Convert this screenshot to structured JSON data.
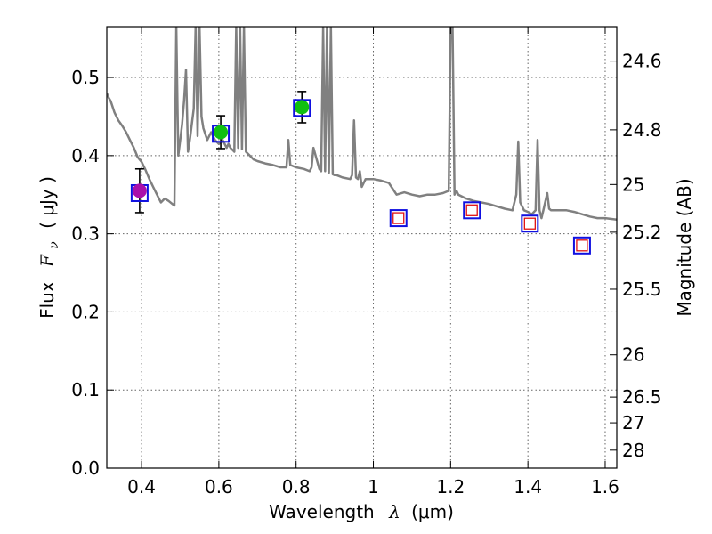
{
  "chart_data": {
    "type": "scatter",
    "xlabel": "Wavelength",
    "xlabel_symbol": "λ",
    "xlabel_unit": "(μm)",
    "ylabel": "Flux",
    "ylabel_symbol": "F",
    "ylabel_subscript": "ν",
    "ylabel_unit": "( μJy )",
    "y2label": "Magnitude (AB)",
    "xlim": [
      0.31,
      1.63
    ],
    "ylim": [
      0.0,
      0.565
    ],
    "grid": true,
    "x_ticks": [
      0.4,
      0.6,
      0.8,
      1.0,
      1.2,
      1.4,
      1.6
    ],
    "x_tick_labels": [
      "0.4",
      "0.6",
      "0.8",
      "1",
      "1.2",
      "1.4",
      "1.6"
    ],
    "y_ticks": [
      0.0,
      0.1,
      0.2,
      0.3,
      0.4,
      0.5
    ],
    "y_tick_labels": [
      "0.0",
      "0.1",
      "0.2",
      "0.3",
      "0.4",
      "0.5"
    ],
    "y2_tick_labels": [
      "24.6",
      "24.8",
      "25",
      "25.2",
      "25.5",
      "26",
      "26.5",
      "27",
      "28"
    ],
    "y2_ticks_flux": [
      0.521,
      0.433,
      0.363,
      0.302,
      0.229,
      0.145,
      0.091,
      0.058,
      0.023
    ],
    "colors": {
      "spectrum": "#808080",
      "model_box": "#1010e0",
      "limit_box": "#e01010",
      "detection_blue_band": "#aa10aa",
      "detection_red_band": "#10c010",
      "errorbar": "#000000"
    },
    "series": [
      {
        "name": "model spectrum",
        "type": "line",
        "x": [
          0.31,
          0.315,
          0.32,
          0.33,
          0.34,
          0.35,
          0.36,
          0.37,
          0.38,
          0.39,
          0.4,
          0.41,
          0.42,
          0.43,
          0.44,
          0.45,
          0.46,
          0.47,
          0.48,
          0.485,
          0.49,
          0.495,
          0.5,
          0.505,
          0.51,
          0.515,
          0.52,
          0.525,
          0.53,
          0.535,
          0.54,
          0.545,
          0.55,
          0.555,
          0.56,
          0.57,
          0.58,
          0.59,
          0.6,
          0.61,
          0.62,
          0.625,
          0.63,
          0.64,
          0.645,
          0.65,
          0.655,
          0.66,
          0.665,
          0.67,
          0.68,
          0.69,
          0.7,
          0.72,
          0.74,
          0.76,
          0.775,
          0.78,
          0.785,
          0.8,
          0.82,
          0.835,
          0.84,
          0.845,
          0.86,
          0.865,
          0.87,
          0.875,
          0.88,
          0.885,
          0.89,
          0.895,
          0.9,
          0.905,
          0.92,
          0.94,
          0.945,
          0.95,
          0.955,
          0.96,
          0.965,
          0.97,
          0.98,
          1.0,
          1.02,
          1.04,
          1.06,
          1.08,
          1.1,
          1.12,
          1.14,
          1.16,
          1.18,
          1.195,
          1.2,
          1.205,
          1.21,
          1.215,
          1.22,
          1.24,
          1.26,
          1.28,
          1.3,
          1.32,
          1.34,
          1.36,
          1.37,
          1.375,
          1.38,
          1.39,
          1.4,
          1.41,
          1.42,
          1.425,
          1.43,
          1.435,
          1.44,
          1.45,
          1.455,
          1.46,
          1.47,
          1.48,
          1.5,
          1.52,
          1.54,
          1.56,
          1.58,
          1.6,
          1.63
        ],
        "y": [
          0.48,
          0.474,
          0.47,
          0.455,
          0.445,
          0.438,
          0.43,
          0.42,
          0.41,
          0.398,
          0.392,
          0.382,
          0.37,
          0.36,
          0.35,
          0.34,
          0.345,
          0.342,
          0.338,
          0.336,
          0.565,
          0.4,
          0.42,
          0.44,
          0.47,
          0.51,
          0.405,
          0.42,
          0.44,
          0.46,
          0.565,
          0.425,
          0.565,
          0.45,
          0.435,
          0.42,
          0.43,
          0.42,
          0.415,
          0.42,
          0.41,
          0.415,
          0.41,
          0.405,
          0.565,
          0.41,
          0.565,
          0.408,
          0.565,
          0.405,
          0.4,
          0.395,
          0.393,
          0.39,
          0.388,
          0.385,
          0.385,
          0.42,
          0.388,
          0.385,
          0.383,
          0.38,
          0.385,
          0.41,
          0.383,
          0.38,
          0.565,
          0.38,
          0.565,
          0.378,
          0.565,
          0.376,
          0.375,
          0.375,
          0.372,
          0.37,
          0.375,
          0.445,
          0.372,
          0.37,
          0.38,
          0.36,
          0.37,
          0.37,
          0.368,
          0.365,
          0.35,
          0.353,
          0.35,
          0.348,
          0.35,
          0.35,
          0.352,
          0.355,
          0.565,
          0.565,
          0.35,
          0.355,
          0.35,
          0.345,
          0.342,
          0.34,
          0.338,
          0.335,
          0.332,
          0.33,
          0.35,
          0.418,
          0.34,
          0.33,
          0.328,
          0.325,
          0.33,
          0.42,
          0.33,
          0.32,
          0.33,
          0.352,
          0.332,
          0.33,
          0.33,
          0.33,
          0.33,
          0.328,
          0.325,
          0.322,
          0.32,
          0.32,
          0.318
        ]
      },
      {
        "name": "detections",
        "type": "points",
        "points": [
          {
            "x": 0.395,
            "y": 0.355,
            "yerr": 0.028,
            "band": "blue"
          },
          {
            "x": 0.605,
            "y": 0.43,
            "yerr": 0.021,
            "band": "red"
          },
          {
            "x": 0.815,
            "y": 0.462,
            "yerr": 0.02,
            "band": "red"
          }
        ]
      },
      {
        "name": "model photometry",
        "type": "open-squares",
        "points": [
          {
            "x": 0.395,
            "y": 0.352
          },
          {
            "x": 0.605,
            "y": 0.428
          },
          {
            "x": 0.815,
            "y": 0.461
          },
          {
            "x": 1.065,
            "y": 0.32
          },
          {
            "x": 1.255,
            "y": 0.33
          },
          {
            "x": 1.405,
            "y": 0.313
          },
          {
            "x": 1.54,
            "y": 0.285
          }
        ]
      },
      {
        "name": "upper limits / nondetections",
        "type": "small-squares",
        "points": [
          {
            "x": 1.065,
            "y": 0.32
          },
          {
            "x": 1.255,
            "y": 0.33
          },
          {
            "x": 1.405,
            "y": 0.313
          },
          {
            "x": 1.54,
            "y": 0.285
          }
        ]
      }
    ]
  }
}
